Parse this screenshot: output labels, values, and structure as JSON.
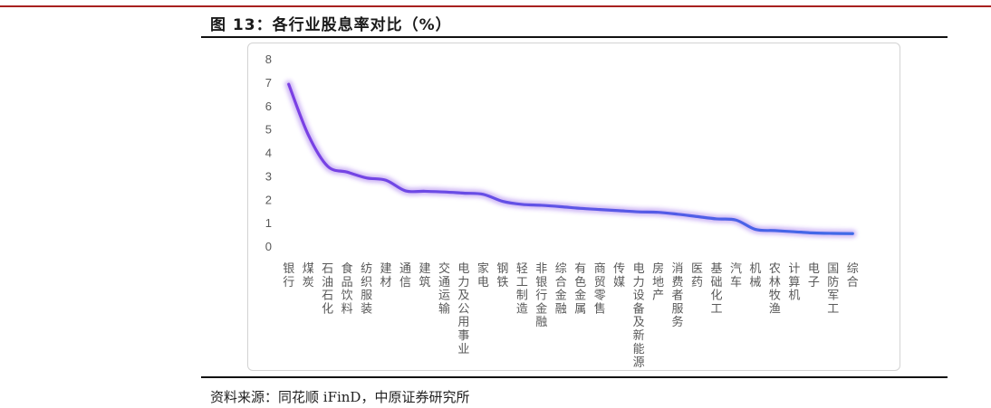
{
  "figure": {
    "title": "图 13：各行业股息率对比（%）",
    "source": "资料来源：同花顺 iFinD，中原证券研究所"
  },
  "chart_data": {
    "type": "line",
    "title": "",
    "xlabel": "",
    "ylabel": "",
    "ylim": [
      0,
      8
    ],
    "yticks": [
      0,
      1,
      2,
      3,
      4,
      5,
      6,
      7,
      8
    ],
    "grid": false,
    "legend": "none",
    "categories": [
      "银行",
      "煤炭",
      "石油石化",
      "食品饮料",
      "纺织服装",
      "建材",
      "通信",
      "建筑",
      "交通运输",
      "电力及公用事业",
      "家电",
      "钢铁",
      "轻工制造",
      "非银行金融",
      "综合金融",
      "有色金属",
      "商贸零售",
      "传媒",
      "电力设备及新能源",
      "房地产",
      "消费者服务",
      "医药",
      "基础化工",
      "汽车",
      "机械",
      "农林牧渔",
      "计算机",
      "电子",
      "国防军工",
      "综合"
    ],
    "series": [
      {
        "values": [
          6.95,
          4.8,
          3.45,
          3.2,
          2.95,
          2.85,
          2.4,
          2.38,
          2.35,
          2.3,
          2.25,
          1.95,
          1.82,
          1.78,
          1.72,
          1.65,
          1.6,
          1.55,
          1.5,
          1.48,
          1.4,
          1.3,
          1.2,
          1.15,
          0.75,
          0.7,
          0.65,
          0.6,
          0.58,
          0.57
        ],
        "color": "#7b3fe4",
        "end_color": "#3f6ae8"
      }
    ]
  }
}
